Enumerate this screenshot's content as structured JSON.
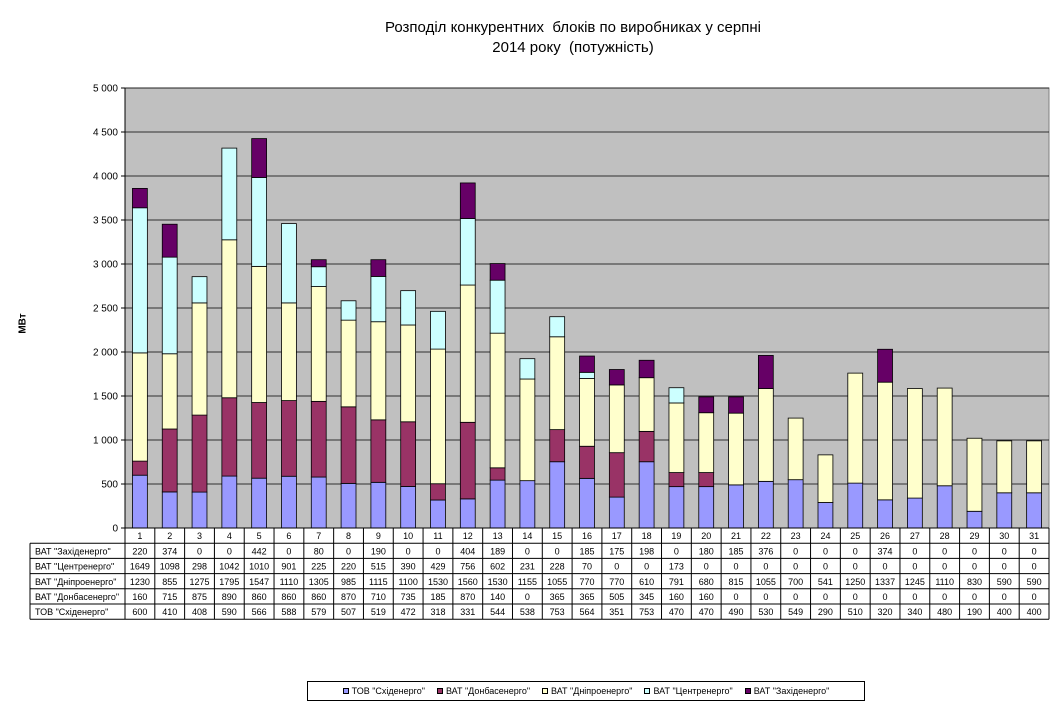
{
  "chart_data": {
    "type": "bar",
    "stacked": true,
    "title": [
      "Розподіл конкурентних  блоків по виробниках у серпні",
      "2014 року  (потужність)"
    ],
    "ylabel": "МВт",
    "ylim": [
      0,
      5000
    ],
    "yticks": [
      "0",
      "500",
      "1 000",
      "1 500",
      "2 000",
      "2 500",
      "3 000",
      "3 500",
      "4 000",
      "4 500",
      "5 000"
    ],
    "grid": true,
    "legend_position": "bottom",
    "categories": [
      "1",
      "2",
      "3",
      "4",
      "5",
      "6",
      "7",
      "8",
      "9",
      "10",
      "11",
      "12",
      "13",
      "14",
      "15",
      "16",
      "17",
      "18",
      "19",
      "20",
      "21",
      "22",
      "23",
      "24",
      "25",
      "26",
      "27",
      "28",
      "29",
      "30",
      "31"
    ],
    "series": [
      {
        "name": "ТОВ \"Східенерго\"",
        "color": "#9999ff",
        "values": [
          600,
          410,
          408,
          590,
          566,
          588,
          579,
          507,
          519,
          472,
          318,
          331,
          544,
          538,
          753,
          564,
          351,
          753,
          470,
          470,
          490,
          530,
          549,
          290,
          510,
          320,
          340,
          480,
          190,
          400,
          400
        ]
      },
      {
        "name": "ВАТ \"Донбасенерго\"",
        "color": "#993366",
        "values": [
          160,
          715,
          875,
          890,
          860,
          860,
          860,
          870,
          710,
          735,
          185,
          870,
          140,
          0,
          365,
          365,
          505,
          345,
          160,
          160,
          0,
          0,
          0,
          0,
          0,
          0,
          0,
          0,
          0,
          0,
          0
        ]
      },
      {
        "name": "ВАТ \"Дніпроенерго\"",
        "color": "#ffffcc",
        "values": [
          1230,
          855,
          1275,
          1795,
          1547,
          1110,
          1305,
          985,
          1115,
          1100,
          1530,
          1560,
          1530,
          1155,
          1055,
          770,
          770,
          610,
          791,
          680,
          815,
          1055,
          700,
          541,
          1250,
          1337,
          1245,
          1110,
          830,
          590,
          590
        ]
      },
      {
        "name": "ВАТ \"Центренерго\"",
        "color": "#ccffff",
        "values": [
          1649,
          1098,
          298,
          1042,
          1010,
          901,
          225,
          220,
          515,
          390,
          429,
          756,
          602,
          231,
          228,
          70,
          0,
          0,
          173,
          0,
          0,
          0,
          0,
          0,
          0,
          0,
          0,
          0,
          0,
          0,
          0
        ]
      },
      {
        "name": "ВАТ \"Західенерго\"",
        "color": "#660066",
        "values": [
          220,
          374,
          0,
          0,
          442,
          0,
          80,
          0,
          190,
          0,
          0,
          404,
          189,
          0,
          0,
          185,
          175,
          198,
          0,
          180,
          185,
          376,
          0,
          0,
          0,
          374,
          0,
          0,
          0,
          0,
          0
        ]
      }
    ],
    "table_row_order": [
      4,
      3,
      2,
      1,
      0
    ],
    "legend_order": [
      0,
      1,
      2,
      3,
      4
    ],
    "plot_background": "#c0c0c0"
  }
}
